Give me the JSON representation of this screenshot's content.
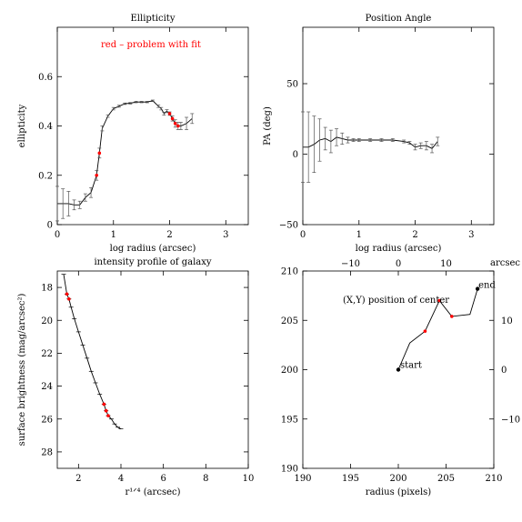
{
  "chart_data": [
    {
      "type": "line",
      "title": "Ellipticity",
      "xlabel": "log radius (arcsec)",
      "ylabel": "ellipticity",
      "xlim": [
        0,
        3.4
      ],
      "ylim": [
        0,
        0.8
      ],
      "xticks": [
        0,
        1,
        2,
        3
      ],
      "yticks": [
        0,
        0.2,
        0.4,
        0.6
      ],
      "x_tick_labels": [
        "0",
        "1",
        "2",
        "3"
      ],
      "y_tick_labels": [
        "0",
        "0.2",
        "0.4",
        "0.6"
      ],
      "annotation": "red – problem with fit",
      "annotation_color": "#ff0000",
      "series": [
        {
          "x": [
            0.0,
            0.1,
            0.2,
            0.3,
            0.4,
            0.5,
            0.6,
            0.7,
            0.75,
            0.8,
            0.9,
            1.0,
            1.1,
            1.2,
            1.3,
            1.4,
            1.5,
            1.6,
            1.7,
            1.8,
            1.85,
            1.9,
            1.95,
            2.0,
            2.05,
            2.1,
            2.15,
            2.2,
            2.3,
            2.4
          ],
          "y": [
            0.085,
            0.085,
            0.085,
            0.08,
            0.08,
            0.11,
            0.13,
            0.2,
            0.29,
            0.39,
            0.44,
            0.47,
            0.48,
            0.49,
            0.492,
            0.497,
            0.497,
            0.497,
            0.502,
            0.48,
            0.47,
            0.45,
            0.46,
            0.45,
            0.43,
            0.41,
            0.4,
            0.4,
            0.41,
            0.43
          ],
          "err": [
            0.07,
            0.06,
            0.05,
            0.02,
            0.015,
            0.015,
            0.02,
            0.02,
            0.02,
            0.01,
            0.005,
            0.005,
            0.004,
            0.003,
            0.003,
            0.003,
            0.003,
            0.003,
            0.003,
            0.005,
            0.005,
            0.006,
            0.006,
            0.007,
            0.01,
            0.015,
            0.015,
            0.015,
            0.025,
            0.02
          ],
          "problem": [
            false,
            false,
            false,
            false,
            false,
            false,
            false,
            true,
            true,
            false,
            false,
            false,
            false,
            false,
            false,
            false,
            false,
            false,
            false,
            false,
            false,
            false,
            false,
            true,
            true,
            true,
            true,
            false,
            false,
            false
          ]
        }
      ]
    },
    {
      "type": "line",
      "title": "Position Angle",
      "xlabel": "log radius (arcsec)",
      "ylabel": "PA (deg)",
      "xlim": [
        0,
        3.4
      ],
      "ylim": [
        -50,
        90
      ],
      "xticks": [
        0,
        1,
        2,
        3
      ],
      "yticks": [
        -50,
        0,
        50
      ],
      "x_tick_labels": [
        "0",
        "1",
        "2",
        "3"
      ],
      "y_tick_labels": [
        "−50",
        "0",
        "50"
      ],
      "series": [
        {
          "x": [
            0.0,
            0.1,
            0.2,
            0.3,
            0.4,
            0.5,
            0.6,
            0.7,
            0.8,
            0.9,
            1.0,
            1.2,
            1.4,
            1.6,
            1.8,
            1.9,
            2.0,
            2.1,
            2.2,
            2.3,
            2.4
          ],
          "y": [
            5,
            5,
            7,
            10,
            11,
            9,
            12,
            11,
            10,
            10,
            10,
            10,
            10,
            10,
            9,
            8,
            5,
            6,
            6,
            4,
            9
          ],
          "err": [
            25,
            25,
            20,
            15,
            8,
            8,
            6,
            4,
            2,
            1,
            1,
            1,
            1,
            1,
            1,
            1,
            2,
            2,
            3,
            3,
            3
          ]
        }
      ]
    },
    {
      "type": "line",
      "title": "intensity profile of galaxy",
      "xlabel": "r¹ᐟ⁴ (arcsec)",
      "ylabel": "surface brightness (mag/arcsec²)",
      "xlim": [
        1,
        10
      ],
      "ylim": [
        29,
        17
      ],
      "xticks": [
        2,
        4,
        6,
        8,
        10
      ],
      "yticks": [
        18,
        20,
        22,
        24,
        26,
        28
      ],
      "x_tick_labels": [
        "2",
        "4",
        "6",
        "8",
        "10"
      ],
      "y_tick_labels": [
        "18",
        "20",
        "22",
        "24",
        "26",
        "28"
      ],
      "series": [
        {
          "x": [
            1.3,
            1.45,
            1.55,
            1.65,
            1.8,
            2.0,
            2.2,
            2.4,
            2.6,
            2.8,
            3.0,
            3.2,
            3.3,
            3.4,
            3.55,
            3.7,
            3.85,
            4.0
          ],
          "y": [
            17.2,
            18.4,
            18.7,
            19.2,
            19.9,
            20.7,
            21.5,
            22.3,
            23.1,
            23.8,
            24.5,
            25.1,
            25.5,
            25.8,
            26.0,
            26.3,
            26.5,
            26.6
          ],
          "problem": [
            false,
            true,
            true,
            false,
            false,
            false,
            false,
            false,
            false,
            false,
            false,
            true,
            true,
            true,
            false,
            false,
            false,
            false
          ]
        }
      ]
    },
    {
      "type": "line",
      "title": "",
      "xlabel": "radius (pixels)",
      "ylabel": "",
      "xlim": [
        190,
        210
      ],
      "ylim": [
        190,
        210
      ],
      "xticks": [
        190,
        195,
        200,
        205,
        210
      ],
      "yticks": [
        190,
        195,
        200,
        205,
        210
      ],
      "x_tick_labels": [
        "190",
        "195",
        "200",
        "205",
        "210"
      ],
      "y_tick_labels": [
        "190",
        "195",
        "200",
        "205",
        "210"
      ],
      "top_xlim": [
        -20,
        20
      ],
      "top_xticks": [
        -10,
        0,
        10
      ],
      "top_x_tick_labels": [
        "−10",
        "0",
        "10"
      ],
      "top_xlabel": "arcsec",
      "right_ylim": [
        -20,
        20
      ],
      "right_yticks": [
        -10,
        0,
        10
      ],
      "right_y_tick_labels": [
        "−10",
        "0",
        "10"
      ],
      "annotation": "(X,Y) position of center",
      "start_label": "start",
      "end_label": "end",
      "series": [
        {
          "x": [
            200.0,
            201.2,
            202.8,
            204.3,
            205.6,
            207.5,
            208.3
          ],
          "y": [
            200.0,
            202.7,
            203.9,
            207.0,
            205.4,
            205.6,
            208.2
          ],
          "problem": [
            true,
            false,
            true,
            true,
            true,
            false,
            false
          ]
        }
      ]
    }
  ]
}
